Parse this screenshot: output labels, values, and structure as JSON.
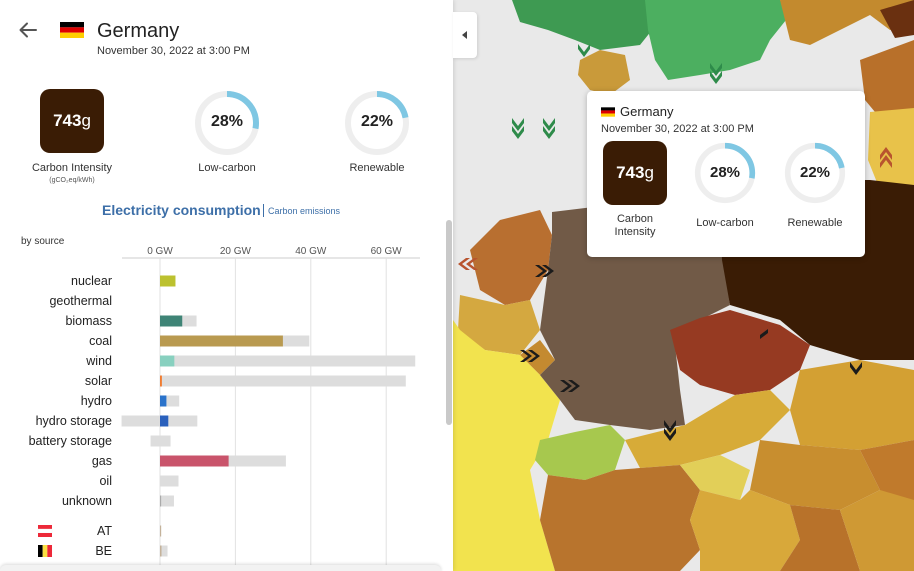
{
  "country": {
    "name": "Germany",
    "datetime": "November 30, 2022 at 3:00 PM",
    "flag_colors": [
      "#000000",
      "#dd0000",
      "#ffce00"
    ]
  },
  "metrics": {
    "carbon_intensity": {
      "value": "743",
      "unit_suffix": "g",
      "label": "Carbon Intensity",
      "unit": "(gCO₂eq/kWh)",
      "box_color": "#3a1c05"
    },
    "low_carbon": {
      "value": "28%",
      "fraction": 0.28,
      "label": "Low-carbon"
    },
    "renewable": {
      "value": "22%",
      "fraction": 0.22,
      "label": "Renewable"
    },
    "ring_color": "#7fc7e3",
    "ring_track": "#eeeeee"
  },
  "chart": {
    "title": "Electricity consumption",
    "alt_link": "Carbon emissions",
    "by_label": "by source"
  },
  "chart_data": {
    "type": "bar",
    "title": "Electricity consumption",
    "xlabel": "GW",
    "xlim": [
      -11,
      68
    ],
    "ticks": [
      "0 GW",
      "20 GW",
      "40 GW",
      "60 GW"
    ],
    "tick_values": [
      0,
      20,
      40,
      60
    ],
    "categories": [
      "nuclear",
      "geothermal",
      "biomass",
      "coal",
      "wind",
      "solar",
      "hydro",
      "hydro storage",
      "battery storage",
      "gas",
      "oil",
      "unknown"
    ],
    "series": [
      {
        "name": "production",
        "values": [
          4.1,
          0,
          5.9,
          32.6,
          3.8,
          0.5,
          1.7,
          2.2,
          0,
          18.2,
          0,
          0.3
        ]
      },
      {
        "name": "capacity",
        "values": [
          4.1,
          0,
          9.7,
          39.6,
          67.7,
          65.2,
          5.1,
          9.9,
          2.8,
          33.4,
          4.9,
          3.7
        ]
      },
      {
        "name": "capacity_negative",
        "values": [
          0,
          0,
          0,
          0,
          0,
          0,
          0,
          -10.2,
          -2.5,
          0,
          0,
          0
        ]
      }
    ],
    "colors": [
      "#bcc12f",
      "#cccccc",
      "#3f8476",
      "#b99a50",
      "#88d0bf",
      "#f07c30",
      "#2a72ca",
      "#2a60bc",
      "#888888",
      "#c9546b",
      "#aaaaaa",
      "#aaaaaa"
    ],
    "exchanges": [
      {
        "code": "AT",
        "value": 0.3,
        "capacity": 0.3
      },
      {
        "code": "BE",
        "value": 0.4,
        "capacity": 2.0
      }
    ]
  },
  "tooltip": {
    "country": "Germany",
    "datetime": "November 30, 2022 at 3:00 PM",
    "ci_value": "743",
    "ci_suffix": "g",
    "ci_label_line1": "Carbon",
    "ci_label_line2": "Intensity",
    "low_carbon": "28%",
    "low_carbon_fraction": 0.28,
    "low_carbon_label": "Low-carbon",
    "renewable": "22%",
    "renewable_fraction": 0.22,
    "renewable_label": "Renewable"
  },
  "icons": {
    "back": "arrow-left-icon",
    "collapse": "chevron-left-icon"
  }
}
